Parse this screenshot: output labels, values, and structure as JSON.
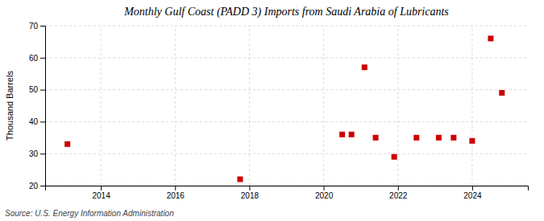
{
  "chart_data": {
    "type": "scatter",
    "title": "Monthly Gulf Coast (PADD 3) Imports from Saudi Arabia of Lubricants",
    "ylabel": "Thousand Barrels",
    "source": "Source: U.S. Energy Information Administration",
    "x": [
      2013.1,
      2017.75,
      2020.5,
      2020.75,
      2021.1,
      2021.4,
      2021.9,
      2022.5,
      2023.1,
      2023.5,
      2024.0,
      2024.5,
      2024.8
    ],
    "values": [
      33,
      22,
      36,
      36,
      57,
      35,
      29,
      35,
      35,
      35,
      34,
      66,
      49
    ],
    "color": "#cc0000",
    "marker": "square",
    "xlim": [
      2012.5,
      2025.5
    ],
    "ylim": [
      20,
      70
    ],
    "xticks": [
      2014,
      2016,
      2018,
      2020,
      2022,
      2024
    ],
    "yticks": [
      20,
      30,
      40,
      50,
      60,
      70
    ],
    "grid": true
  }
}
